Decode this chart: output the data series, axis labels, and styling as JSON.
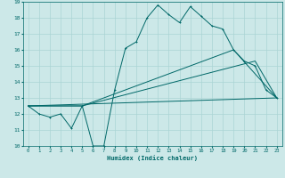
{
  "xlabel": "Humidex (Indice chaleur)",
  "xlim": [
    -0.5,
    23.5
  ],
  "ylim": [
    10,
    19
  ],
  "yticks": [
    10,
    11,
    12,
    13,
    14,
    15,
    16,
    17,
    18,
    19
  ],
  "xticks": [
    0,
    1,
    2,
    3,
    4,
    5,
    6,
    7,
    8,
    9,
    10,
    11,
    12,
    13,
    14,
    15,
    16,
    17,
    18,
    19,
    20,
    21,
    22,
    23
  ],
  "bg_color": "#cce8e8",
  "grid_color": "#aad4d4",
  "line_color": "#006868",
  "line1_x": [
    0,
    1,
    2,
    3,
    4,
    5,
    6,
    7,
    8,
    9,
    10,
    11,
    12,
    13,
    14,
    15,
    16,
    17,
    18,
    19,
    20,
    21,
    22,
    23
  ],
  "line1_y": [
    12.5,
    12.0,
    11.8,
    12.0,
    11.1,
    12.5,
    10.0,
    10.0,
    13.5,
    16.1,
    16.5,
    18.0,
    18.8,
    18.2,
    17.7,
    18.7,
    18.1,
    17.5,
    17.3,
    16.0,
    15.3,
    15.0,
    13.5,
    13.0
  ],
  "line2_x": [
    0,
    5,
    21,
    23
  ],
  "line2_y": [
    12.5,
    12.5,
    15.3,
    13.0
  ],
  "line3_x": [
    0,
    5,
    19,
    23
  ],
  "line3_y": [
    12.5,
    12.5,
    16.0,
    13.0
  ],
  "line4_x": [
    0,
    23
  ],
  "line4_y": [
    12.5,
    13.0
  ]
}
